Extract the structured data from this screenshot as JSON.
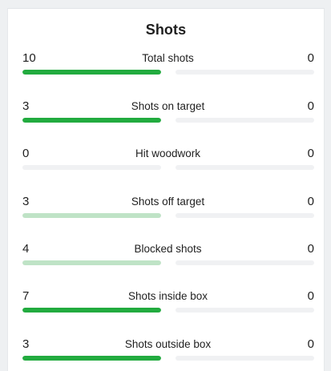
{
  "panel": {
    "title": "Shots"
  },
  "colors": {
    "highlight_fill": "#22ab3f",
    "muted_fill": "#bfe3c6",
    "track": "#f0f1f3"
  },
  "stats": [
    {
      "label": "Total shots",
      "home": "10",
      "away": "0",
      "home_share": 1.0,
      "away_share": 0.0,
      "style": "highlight"
    },
    {
      "label": "Shots on target",
      "home": "3",
      "away": "0",
      "home_share": 1.0,
      "away_share": 0.0,
      "style": "highlight"
    },
    {
      "label": "Hit woodwork",
      "home": "0",
      "away": "0",
      "home_share": 0.0,
      "away_share": 0.0,
      "style": "highlight"
    },
    {
      "label": "Shots off target",
      "home": "3",
      "away": "0",
      "home_share": 1.0,
      "away_share": 0.0,
      "style": "muted"
    },
    {
      "label": "Blocked shots",
      "home": "4",
      "away": "0",
      "home_share": 1.0,
      "away_share": 0.0,
      "style": "muted"
    },
    {
      "label": "Shots inside box",
      "home": "7",
      "away": "0",
      "home_share": 1.0,
      "away_share": 0.0,
      "style": "highlight"
    },
    {
      "label": "Shots outside box",
      "home": "3",
      "away": "0",
      "home_share": 1.0,
      "away_share": 0.0,
      "style": "highlight"
    }
  ]
}
